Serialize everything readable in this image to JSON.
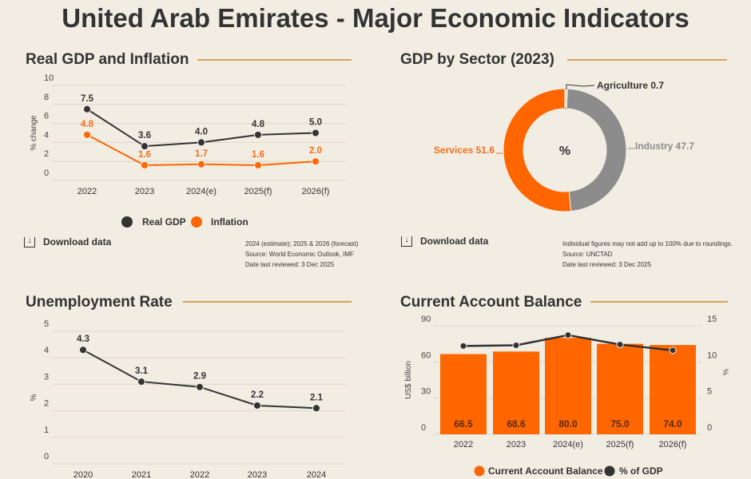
{
  "title": "United Arab Emirates - Major Economic Indicators",
  "colors": {
    "orange": "#ff6600",
    "dark": "#333333",
    "gray": "#8c8c8c",
    "rule": "#d9a25a"
  },
  "download_label": "Download data",
  "download_icon": "download-icon",
  "chart_data": [
    {
      "type": "line",
      "title": "Real GDP and Inflation",
      "ylabel": "% change",
      "ylim": [
        0,
        10
      ],
      "yticks": [
        "0",
        "2",
        "4",
        "6",
        "8",
        "10"
      ],
      "categories": [
        "2022",
        "2023",
        "2024(e)",
        "2025(f)",
        "2026(f)"
      ],
      "series": [
        {
          "name": "Real GDP",
          "values": [
            7.5,
            3.6,
            4.0,
            4.8,
            5.0
          ],
          "labels": [
            "7.5",
            "3.6",
            "4.0",
            "4.8",
            "5.0"
          ],
          "color": "#333333"
        },
        {
          "name": "Inflation",
          "values": [
            4.8,
            1.6,
            1.7,
            1.6,
            2.0
          ],
          "labels": [
            "4.8",
            "1.6",
            "1.7",
            "1.6",
            "2.0"
          ],
          "color": "#ff6600"
        }
      ],
      "legend": "bottom",
      "grid": true,
      "notes": [
        "2024 (estimate); 2025 & 2026 (forecast)",
        "Source: World Economic Outlook, IMF",
        "Date last reviewed: 3 Dec 2025"
      ]
    },
    {
      "type": "pie",
      "title": "GDP by Sector (2023)",
      "center_label": "%",
      "slices": [
        {
          "name": "Agriculture",
          "value": 0.7,
          "label": "Agriculture 0.7",
          "color": "#333333"
        },
        {
          "name": "Industry",
          "value": 47.7,
          "label": "Industry 47.7",
          "color": "#8c8c8c"
        },
        {
          "name": "Services",
          "value": 51.6,
          "label": "Services 51.6",
          "color": "#ff6600"
        }
      ],
      "notes": [
        "Individual figures may not add up to 100% due to roundings.",
        "Source: UNCTAD",
        "Date last reviewed: 3 Dec 2025"
      ]
    },
    {
      "type": "line",
      "title": "Unemployment Rate",
      "ylabel": "%",
      "ylim": [
        0,
        5
      ],
      "yticks": [
        "0",
        "1",
        "2",
        "3",
        "4",
        "5"
      ],
      "categories": [
        "2020",
        "2021",
        "2022",
        "2023",
        "2024"
      ],
      "series": [
        {
          "values": [
            4.3,
            3.1,
            2.9,
            2.2,
            2.1
          ],
          "labels": [
            "4.3",
            "3.1",
            "2.9",
            "2.2",
            "2.1"
          ],
          "color": "#333333"
        }
      ],
      "grid": true
    },
    {
      "type": "bar",
      "title": "Current Account Balance",
      "ylabel": "US$ billion",
      "ylabel_right": "%",
      "ylim": [
        0,
        90
      ],
      "ylim_right": [
        0,
        15
      ],
      "yticks": [
        "0",
        "30",
        "60",
        "90"
      ],
      "yticks_right": [
        "0",
        "5",
        "10",
        "15"
      ],
      "categories": [
        "2022",
        "2023",
        "2024(e)",
        "2025(f)",
        "2026(f)"
      ],
      "series": [
        {
          "name": "Current Account Balance",
          "type": "bar",
          "values": [
            66.5,
            68.6,
            80.0,
            75.0,
            74.0
          ],
          "labels": [
            "66.5",
            "68.6",
            "80.0",
            "75.0",
            "74.0"
          ],
          "color": "#ff6600"
        },
        {
          "name": "% of GDP",
          "type": "line",
          "axis": "right",
          "values": [
            12.2,
            12.3,
            13.7,
            12.4,
            11.6
          ],
          "color": "#333333"
        }
      ],
      "legend": "bottom",
      "grid": true
    }
  ]
}
